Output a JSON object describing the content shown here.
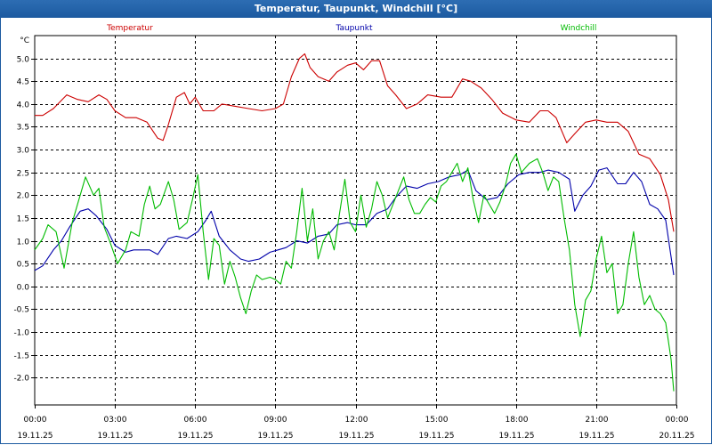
{
  "window": {
    "title": "Temperatur, Taupunkt, Windchill [°C]"
  },
  "colors": {
    "temperature": "#cc0000",
    "dewpoint": "#0000aa",
    "windchill": "#00bb00",
    "titlebar": "#1c5aa0"
  },
  "chart_data": {
    "type": "line",
    "title": "Temperatur, Taupunkt, Windchill [°C]",
    "ylabel": "°C",
    "ylim": [
      -2.6,
      5.5
    ],
    "yticks": [
      "5.0",
      "4.5",
      "4.0",
      "3.5",
      "3.0",
      "2.5",
      "2.0",
      "1.5",
      "1.0",
      "0.5",
      "0.0",
      "-0.5",
      "-1.0",
      "-1.5",
      "-2.0"
    ],
    "xlim": [
      0,
      24
    ],
    "xticks": [
      {
        "hour": 0,
        "time": "00:00",
        "date": "19.11.25"
      },
      {
        "hour": 3,
        "time": "03:00",
        "date": "19.11.25"
      },
      {
        "hour": 6,
        "time": "06:00",
        "date": "19.11.25"
      },
      {
        "hour": 9,
        "time": "09:00",
        "date": "19.11.25"
      },
      {
        "hour": 12,
        "time": "12:00",
        "date": "19.11.25"
      },
      {
        "hour": 15,
        "time": "15:00",
        "date": "19.11.25"
      },
      {
        "hour": 18,
        "time": "18:00",
        "date": "19.11.25"
      },
      {
        "hour": 21,
        "time": "21:00",
        "date": "19.11.25"
      },
      {
        "hour": 24,
        "time": "00:00",
        "date": "20.11.25"
      }
    ],
    "grid": true,
    "series": [
      {
        "name": "Temperatur",
        "color": "#cc0000",
        "points": [
          [
            0,
            3.75
          ],
          [
            0.3,
            3.75
          ],
          [
            0.7,
            3.9
          ],
          [
            1.2,
            4.2
          ],
          [
            1.6,
            4.1
          ],
          [
            2.0,
            4.05
          ],
          [
            2.4,
            4.2
          ],
          [
            2.7,
            4.1
          ],
          [
            3.0,
            3.85
          ],
          [
            3.4,
            3.7
          ],
          [
            3.8,
            3.7
          ],
          [
            4.2,
            3.6
          ],
          [
            4.6,
            3.25
          ],
          [
            4.8,
            3.2
          ],
          [
            5.0,
            3.55
          ],
          [
            5.3,
            4.15
          ],
          [
            5.6,
            4.25
          ],
          [
            5.8,
            4.0
          ],
          [
            6.0,
            4.15
          ],
          [
            6.3,
            3.85
          ],
          [
            6.7,
            3.85
          ],
          [
            7.0,
            4.0
          ],
          [
            7.5,
            3.95
          ],
          [
            8.0,
            3.9
          ],
          [
            8.5,
            3.85
          ],
          [
            9.0,
            3.9
          ],
          [
            9.3,
            4.0
          ],
          [
            9.6,
            4.6
          ],
          [
            9.9,
            5.0
          ],
          [
            10.1,
            5.1
          ],
          [
            10.3,
            4.8
          ],
          [
            10.6,
            4.6
          ],
          [
            11.0,
            4.5
          ],
          [
            11.3,
            4.7
          ],
          [
            11.7,
            4.85
          ],
          [
            12.0,
            4.9
          ],
          [
            12.3,
            4.75
          ],
          [
            12.6,
            4.95
          ],
          [
            12.9,
            4.95
          ],
          [
            13.2,
            4.4
          ],
          [
            13.5,
            4.2
          ],
          [
            13.9,
            3.9
          ],
          [
            14.3,
            4.0
          ],
          [
            14.7,
            4.2
          ],
          [
            15.2,
            4.15
          ],
          [
            15.6,
            4.15
          ],
          [
            16.0,
            4.55
          ],
          [
            16.3,
            4.5
          ],
          [
            16.7,
            4.35
          ],
          [
            17.1,
            4.1
          ],
          [
            17.5,
            3.8
          ],
          [
            18.0,
            3.65
          ],
          [
            18.5,
            3.6
          ],
          [
            18.9,
            3.85
          ],
          [
            19.2,
            3.85
          ],
          [
            19.5,
            3.7
          ],
          [
            19.9,
            3.15
          ],
          [
            20.2,
            3.35
          ],
          [
            20.6,
            3.6
          ],
          [
            21.0,
            3.65
          ],
          [
            21.4,
            3.6
          ],
          [
            21.8,
            3.6
          ],
          [
            22.2,
            3.4
          ],
          [
            22.6,
            2.9
          ],
          [
            23.0,
            2.8
          ],
          [
            23.4,
            2.45
          ],
          [
            23.7,
            1.9
          ],
          [
            23.9,
            1.2
          ]
        ]
      },
      {
        "name": "Taupunkt",
        "color": "#0000aa",
        "points": [
          [
            0,
            0.35
          ],
          [
            0.3,
            0.45
          ],
          [
            0.7,
            0.8
          ],
          [
            1.0,
            1.0
          ],
          [
            1.3,
            1.3
          ],
          [
            1.7,
            1.65
          ],
          [
            2.0,
            1.7
          ],
          [
            2.3,
            1.55
          ],
          [
            2.7,
            1.25
          ],
          [
            3.0,
            0.9
          ],
          [
            3.4,
            0.75
          ],
          [
            3.7,
            0.8
          ],
          [
            4.0,
            0.8
          ],
          [
            4.3,
            0.8
          ],
          [
            4.6,
            0.7
          ],
          [
            5.0,
            1.05
          ],
          [
            5.3,
            1.1
          ],
          [
            5.7,
            1.05
          ],
          [
            6.1,
            1.2
          ],
          [
            6.4,
            1.45
          ],
          [
            6.6,
            1.65
          ],
          [
            6.9,
            1.1
          ],
          [
            7.3,
            0.8
          ],
          [
            7.7,
            0.6
          ],
          [
            8.0,
            0.55
          ],
          [
            8.4,
            0.6
          ],
          [
            8.8,
            0.75
          ],
          [
            9.1,
            0.8
          ],
          [
            9.4,
            0.85
          ],
          [
            9.8,
            1.0
          ],
          [
            10.2,
            0.95
          ],
          [
            10.6,
            1.1
          ],
          [
            11.0,
            1.15
          ],
          [
            11.3,
            1.35
          ],
          [
            11.7,
            1.4
          ],
          [
            12.0,
            1.35
          ],
          [
            12.4,
            1.35
          ],
          [
            12.8,
            1.6
          ],
          [
            13.2,
            1.7
          ],
          [
            13.5,
            1.95
          ],
          [
            13.9,
            2.2
          ],
          [
            14.3,
            2.15
          ],
          [
            14.7,
            2.25
          ],
          [
            15.1,
            2.3
          ],
          [
            15.5,
            2.4
          ],
          [
            15.9,
            2.45
          ],
          [
            16.2,
            2.55
          ],
          [
            16.5,
            2.1
          ],
          [
            16.9,
            1.9
          ],
          [
            17.3,
            1.95
          ],
          [
            17.7,
            2.25
          ],
          [
            18.1,
            2.45
          ],
          [
            18.5,
            2.5
          ],
          [
            18.9,
            2.5
          ],
          [
            19.2,
            2.55
          ],
          [
            19.6,
            2.5
          ],
          [
            20.0,
            2.35
          ],
          [
            20.2,
            1.65
          ],
          [
            20.5,
            2.0
          ],
          [
            20.8,
            2.2
          ],
          [
            21.1,
            2.55
          ],
          [
            21.4,
            2.6
          ],
          [
            21.8,
            2.25
          ],
          [
            22.1,
            2.25
          ],
          [
            22.4,
            2.5
          ],
          [
            22.7,
            2.3
          ],
          [
            23.0,
            1.8
          ],
          [
            23.3,
            1.7
          ],
          [
            23.6,
            1.45
          ],
          [
            23.9,
            0.25
          ]
        ]
      },
      {
        "name": "Windchill",
        "color": "#00bb00",
        "points": [
          [
            0,
            0.8
          ],
          [
            0.3,
            1.05
          ],
          [
            0.5,
            1.35
          ],
          [
            0.8,
            1.2
          ],
          [
            1.1,
            0.4
          ],
          [
            1.4,
            1.4
          ],
          [
            1.7,
            2.0
          ],
          [
            1.9,
            2.4
          ],
          [
            2.2,
            2.0
          ],
          [
            2.4,
            2.15
          ],
          [
            2.6,
            1.3
          ],
          [
            2.8,
            1.0
          ],
          [
            3.1,
            0.5
          ],
          [
            3.4,
            0.8
          ],
          [
            3.6,
            1.2
          ],
          [
            3.9,
            1.1
          ],
          [
            4.1,
            1.8
          ],
          [
            4.3,
            2.2
          ],
          [
            4.5,
            1.7
          ],
          [
            4.7,
            1.8
          ],
          [
            5.0,
            2.3
          ],
          [
            5.2,
            1.9
          ],
          [
            5.4,
            1.25
          ],
          [
            5.7,
            1.4
          ],
          [
            5.9,
            1.9
          ],
          [
            6.1,
            2.45
          ],
          [
            6.3,
            1.2
          ],
          [
            6.5,
            0.15
          ],
          [
            6.7,
            1.05
          ],
          [
            6.9,
            0.9
          ],
          [
            7.1,
            0.05
          ],
          [
            7.3,
            0.55
          ],
          [
            7.5,
            0.2
          ],
          [
            7.7,
            -0.25
          ],
          [
            7.9,
            -0.6
          ],
          [
            8.1,
            -0.1
          ],
          [
            8.3,
            0.25
          ],
          [
            8.5,
            0.15
          ],
          [
            8.8,
            0.2
          ],
          [
            9.0,
            0.15
          ],
          [
            9.2,
            0.05
          ],
          [
            9.4,
            0.55
          ],
          [
            9.6,
            0.4
          ],
          [
            9.8,
            1.2
          ],
          [
            10.0,
            2.15
          ],
          [
            10.2,
            1.0
          ],
          [
            10.4,
            1.7
          ],
          [
            10.6,
            0.6
          ],
          [
            10.8,
            1.0
          ],
          [
            11.0,
            1.2
          ],
          [
            11.2,
            0.8
          ],
          [
            11.4,
            1.6
          ],
          [
            11.6,
            2.35
          ],
          [
            11.8,
            1.4
          ],
          [
            12.0,
            1.2
          ],
          [
            12.2,
            2.0
          ],
          [
            12.4,
            1.3
          ],
          [
            12.6,
            1.7
          ],
          [
            12.8,
            2.3
          ],
          [
            13.0,
            2.0
          ],
          [
            13.2,
            1.5
          ],
          [
            13.4,
            1.8
          ],
          [
            13.6,
            2.1
          ],
          [
            13.8,
            2.4
          ],
          [
            14.0,
            1.9
          ],
          [
            14.2,
            1.6
          ],
          [
            14.4,
            1.6
          ],
          [
            14.6,
            1.8
          ],
          [
            14.8,
            1.95
          ],
          [
            15.0,
            1.85
          ],
          [
            15.2,
            2.2
          ],
          [
            15.4,
            2.3
          ],
          [
            15.6,
            2.5
          ],
          [
            15.8,
            2.7
          ],
          [
            16.0,
            2.3
          ],
          [
            16.2,
            2.6
          ],
          [
            16.4,
            1.9
          ],
          [
            16.6,
            1.4
          ],
          [
            16.8,
            2.0
          ],
          [
            17.0,
            1.8
          ],
          [
            17.2,
            1.6
          ],
          [
            17.4,
            1.85
          ],
          [
            17.6,
            2.2
          ],
          [
            17.8,
            2.7
          ],
          [
            18.0,
            2.9
          ],
          [
            18.2,
            2.5
          ],
          [
            18.5,
            2.7
          ],
          [
            18.8,
            2.8
          ],
          [
            19.0,
            2.5
          ],
          [
            19.2,
            2.1
          ],
          [
            19.4,
            2.4
          ],
          [
            19.6,
            2.3
          ],
          [
            19.8,
            1.5
          ],
          [
            20.0,
            0.8
          ],
          [
            20.2,
            -0.4
          ],
          [
            20.4,
            -1.1
          ],
          [
            20.6,
            -0.3
          ],
          [
            20.8,
            -0.1
          ],
          [
            21.0,
            0.6
          ],
          [
            21.2,
            1.1
          ],
          [
            21.4,
            0.3
          ],
          [
            21.6,
            0.5
          ],
          [
            21.8,
            -0.6
          ],
          [
            22.0,
            -0.4
          ],
          [
            22.2,
            0.5
          ],
          [
            22.4,
            1.2
          ],
          [
            22.6,
            0.2
          ],
          [
            22.8,
            -0.4
          ],
          [
            23.0,
            -0.2
          ],
          [
            23.2,
            -0.5
          ],
          [
            23.4,
            -0.6
          ],
          [
            23.6,
            -0.8
          ],
          [
            23.8,
            -1.6
          ],
          [
            23.9,
            -2.3
          ]
        ]
      }
    ]
  }
}
